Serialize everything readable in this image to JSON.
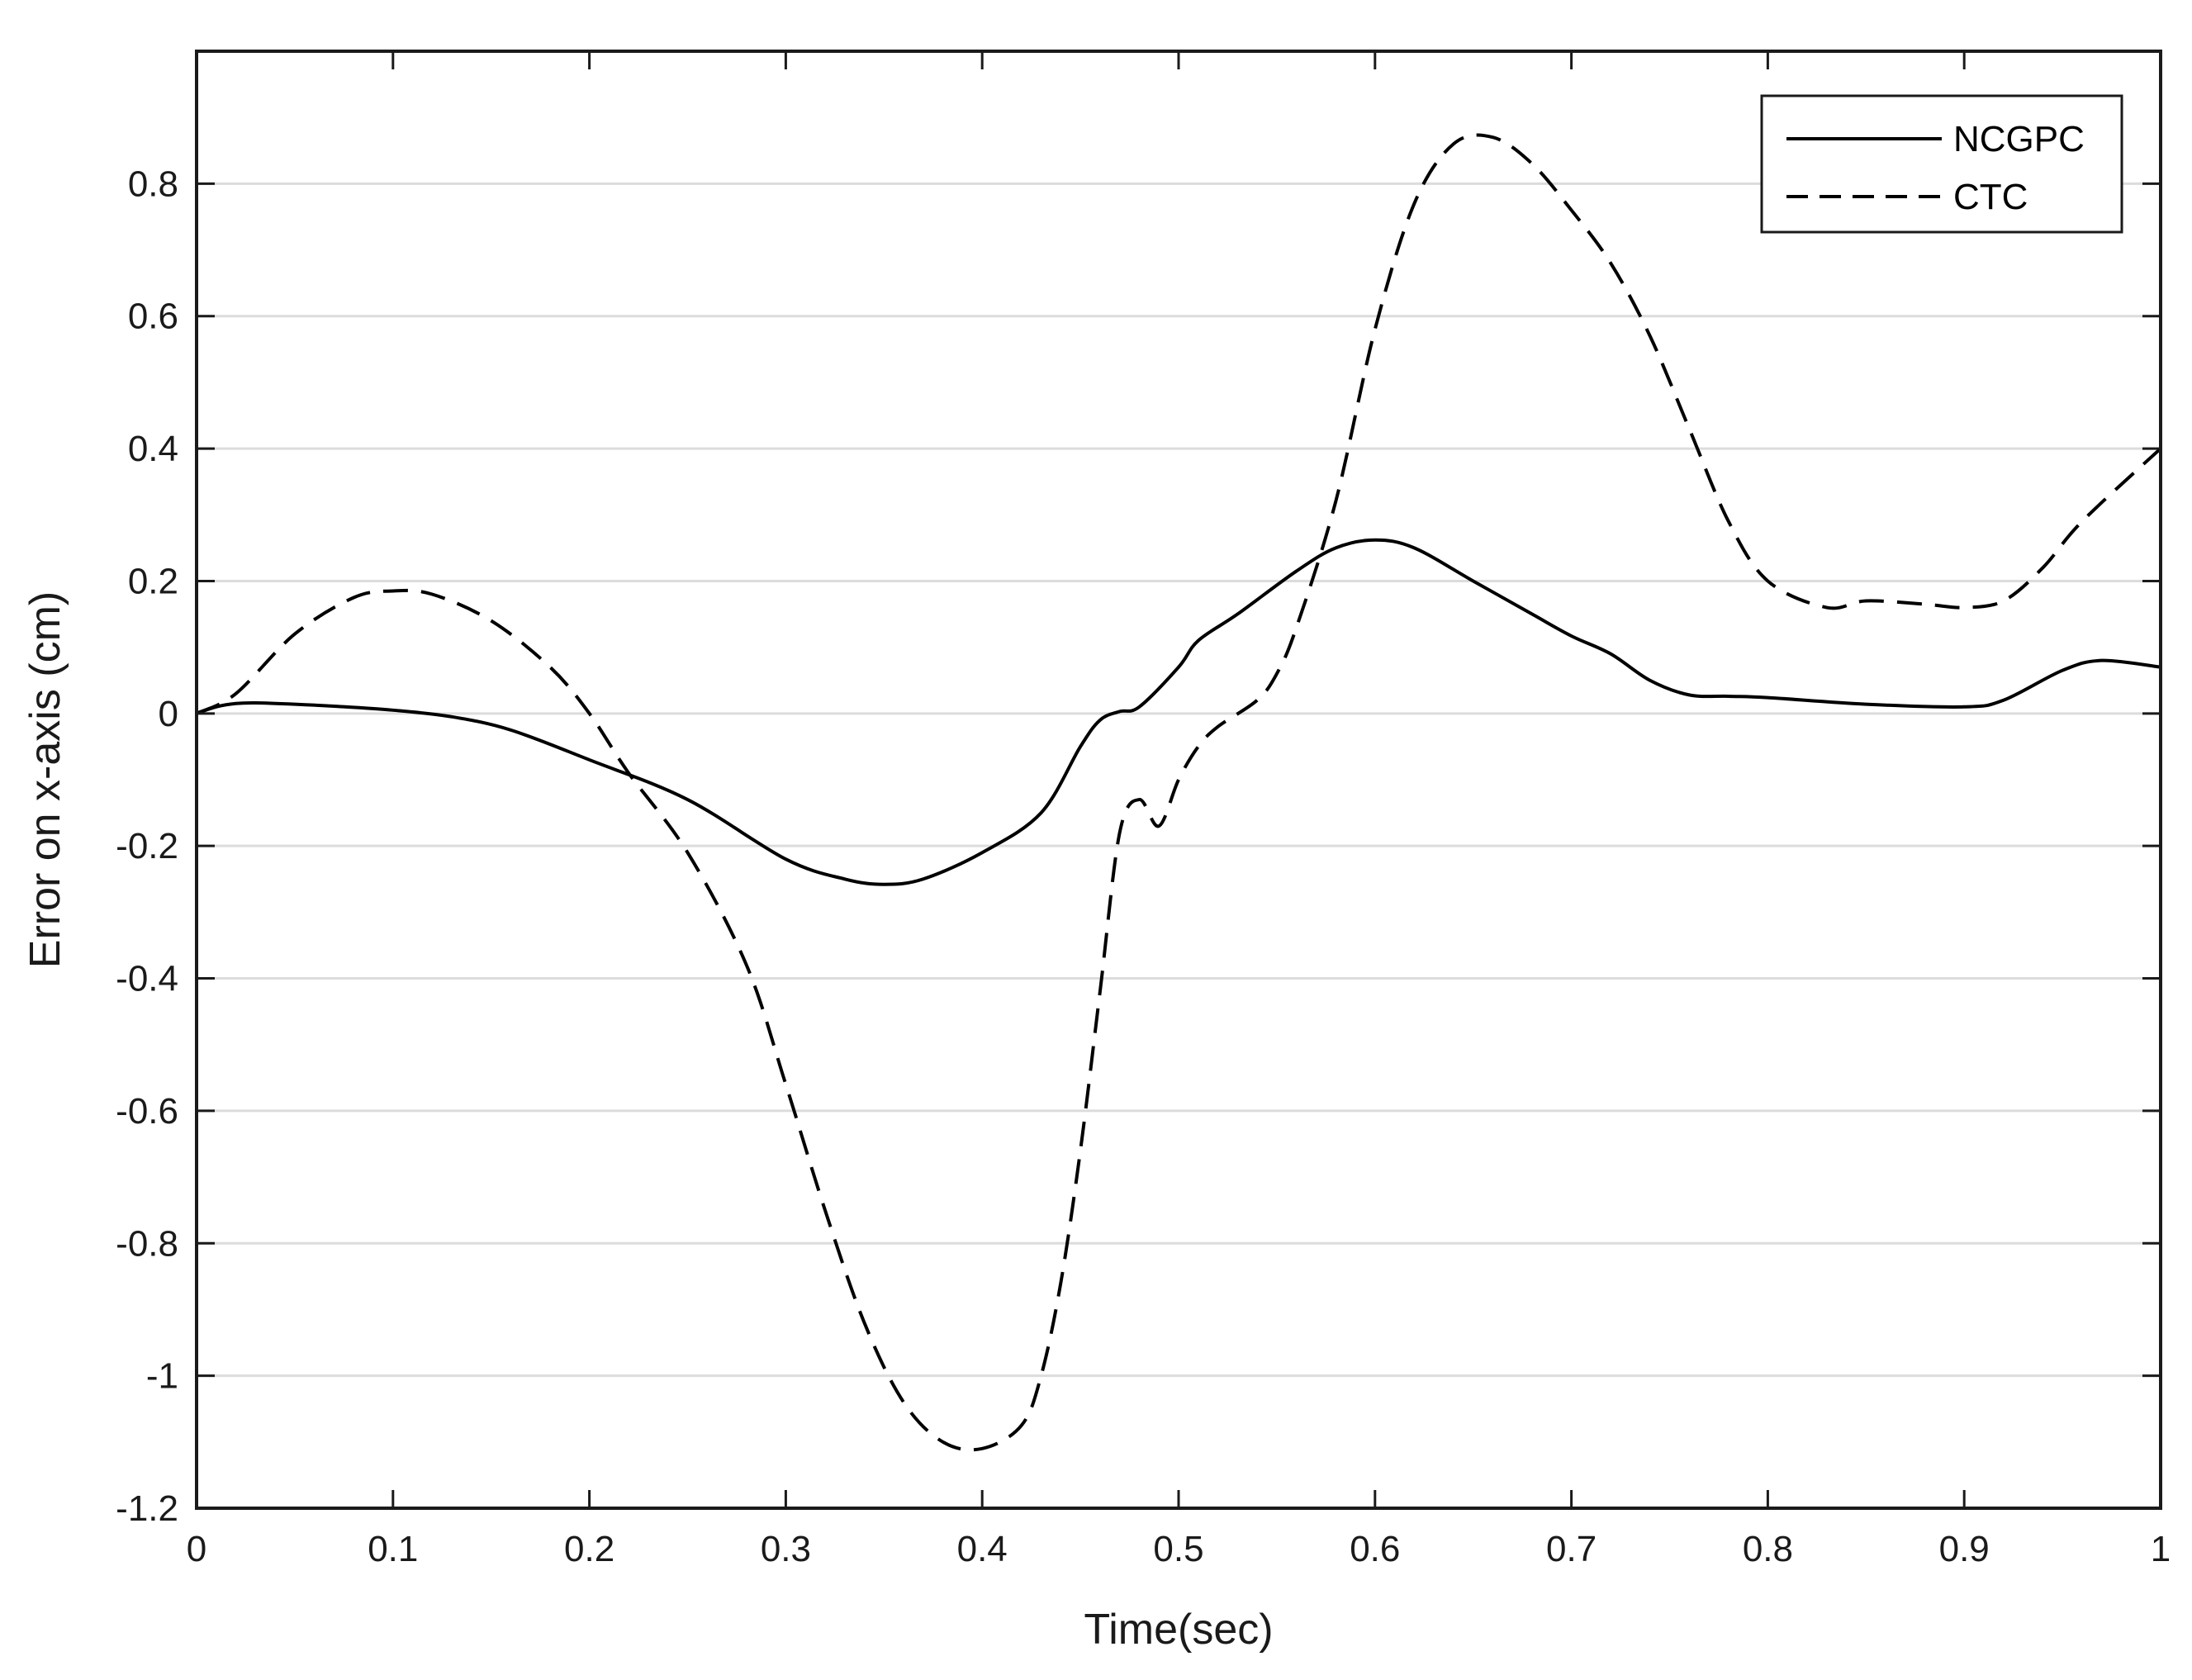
{
  "chart_data": {
    "type": "line",
    "title": "",
    "xlabel": "Time(sec)",
    "ylabel": "Error on x-axis (cm)",
    "xlim": [
      0,
      1
    ],
    "ylim": [
      -1.2,
      1.0
    ],
    "xticks": [
      0,
      0.1,
      0.2,
      0.3,
      0.4,
      0.5,
      0.6,
      0.7,
      0.8,
      0.9,
      1
    ],
    "xtick_labels": [
      "0",
      "0.1",
      "0.2",
      "0.3",
      "0.4",
      "0.5",
      "0.6",
      "0.7",
      "0.8",
      "0.9",
      "1"
    ],
    "yticks": [
      -1.2,
      -1,
      -0.8,
      -0.6,
      -0.4,
      -0.2,
      0,
      0.2,
      0.4,
      0.6,
      0.8
    ],
    "ytick_labels": [
      "-1.2",
      "-1",
      "-0.8",
      "-0.6",
      "-0.4",
      "-0.2",
      "0",
      "0.2",
      "0.4",
      "0.6",
      "0.8"
    ],
    "grid": "horizontal",
    "legend_position": "top-right",
    "series": [
      {
        "name": "NCGPC",
        "style": "solid",
        "color": "#000000",
        "x": [
          0,
          0.01,
          0.02,
          0.03,
          0.05,
          0.07,
          0.1,
          0.13,
          0.16,
          0.2,
          0.25,
          0.3,
          0.33,
          0.35,
          0.37,
          0.4,
          0.43,
          0.45,
          0.46,
          0.47,
          0.48,
          0.5,
          0.51,
          0.53,
          0.56,
          0.58,
          0.6,
          0.62,
          0.65,
          0.68,
          0.7,
          0.72,
          0.74,
          0.76,
          0.78,
          0.8,
          0.85,
          0.9,
          0.92,
          0.95,
          0.97,
          1.0
        ],
        "y": [
          0,
          0.01,
          0.015,
          0.016,
          0.014,
          0.011,
          0.005,
          -0.005,
          -0.025,
          -0.07,
          -0.13,
          -0.22,
          -0.25,
          -0.258,
          -0.25,
          -0.21,
          -0.15,
          -0.05,
          -0.01,
          0.003,
          0.01,
          0.07,
          0.11,
          0.15,
          0.215,
          0.25,
          0.262,
          0.25,
          0.2,
          0.15,
          0.117,
          0.09,
          0.05,
          0.028,
          0.026,
          0.024,
          0.014,
          0.01,
          0.02,
          0.065,
          0.08,
          0.07
        ]
      },
      {
        "name": "CTC",
        "style": "dashed",
        "color": "#000000",
        "x": [
          0,
          0.02,
          0.05,
          0.08,
          0.1,
          0.12,
          0.15,
          0.18,
          0.2,
          0.22,
          0.25,
          0.28,
          0.3,
          0.32,
          0.34,
          0.36,
          0.38,
          0.4,
          0.42,
          0.43,
          0.44,
          0.45,
          0.46,
          0.47,
          0.48,
          0.49,
          0.5,
          0.51,
          0.52,
          0.54,
          0.55,
          0.56,
          0.58,
          0.6,
          0.62,
          0.64,
          0.66,
          0.68,
          0.7,
          0.72,
          0.74,
          0.76,
          0.78,
          0.8,
          0.83,
          0.85,
          0.88,
          0.9,
          0.92,
          0.94,
          0.96,
          1.0
        ],
        "y": [
          0,
          0.03,
          0.12,
          0.175,
          0.185,
          0.18,
          0.14,
          0.07,
          0.0,
          -0.09,
          -0.21,
          -0.38,
          -0.56,
          -0.75,
          -0.92,
          -1.04,
          -1.1,
          -1.11,
          -1.075,
          -1.0,
          -0.86,
          -0.66,
          -0.42,
          -0.18,
          -0.13,
          -0.17,
          -0.1,
          -0.05,
          -0.02,
          0.02,
          0.06,
          0.13,
          0.32,
          0.58,
          0.77,
          0.86,
          0.87,
          0.83,
          0.76,
          0.68,
          0.57,
          0.43,
          0.29,
          0.2,
          0.16,
          0.17,
          0.165,
          0.16,
          0.17,
          0.22,
          0.29,
          0.4
        ]
      }
    ]
  }
}
